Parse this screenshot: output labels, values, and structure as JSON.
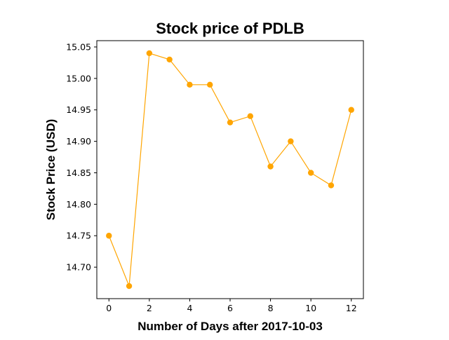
{
  "chart_data": {
    "type": "line",
    "title": "Stock price of PDLB",
    "xlabel": "Number of Days after 2017-10-03",
    "ylabel": "Stock Price (USD)",
    "x": [
      0,
      1,
      2,
      3,
      4,
      5,
      6,
      7,
      8,
      9,
      10,
      11,
      12
    ],
    "series": [
      {
        "values": [
          14.75,
          14.67,
          15.04,
          15.03,
          14.99,
          14.99,
          14.93,
          14.94,
          14.86,
          14.9,
          14.85,
          14.83,
          14.95
        ],
        "color": "#FFA500"
      }
    ],
    "xlim": [
      -0.6,
      12.6
    ],
    "ylim": [
      14.65,
      15.06
    ],
    "xticks": [
      "0",
      "2",
      "4",
      "6",
      "8",
      "10",
      "12"
    ],
    "yticks": [
      "14.70",
      "14.75",
      "14.80",
      "14.85",
      "14.90",
      "14.95",
      "15.00",
      "15.05"
    ],
    "grid": false,
    "legend": "none"
  }
}
